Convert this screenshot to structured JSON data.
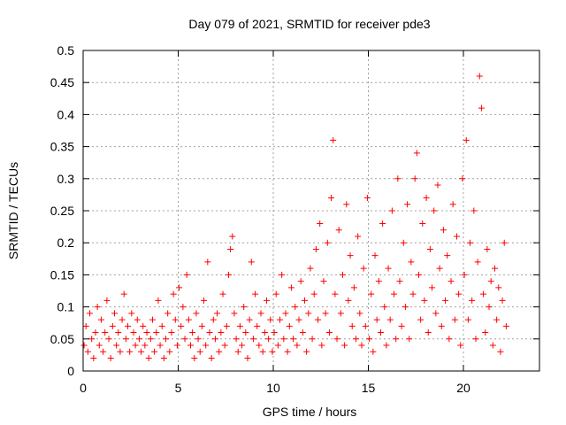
{
  "chart_data": {
    "type": "scatter",
    "title": "Day 079 of 2021, SRMTID for receiver pde3",
    "xlabel": "GPS time / hours",
    "ylabel": "SRMTID / TECUs",
    "xlim": [
      0,
      24
    ],
    "ylim": [
      0,
      0.5
    ],
    "xticks": [
      0,
      5,
      10,
      15,
      20
    ],
    "xtick_labels": [
      "0",
      "5",
      "10",
      "15",
      "20"
    ],
    "yticks": [
      0,
      0.05,
      0.1,
      0.15,
      0.2,
      0.25,
      0.3,
      0.35,
      0.4,
      0.45,
      0.5
    ],
    "ytick_labels": [
      "0",
      "0.05",
      "0.1",
      "0.15",
      "0.2",
      "0.25",
      "0.3",
      "0.35",
      "0.4",
      "0.45",
      "0.5"
    ],
    "grid": true,
    "marker": "+",
    "colors": {
      "points": "#ff0000",
      "grid": "#a0a0a0",
      "axis": "#000000"
    },
    "series": [
      {
        "name": "SRMTID",
        "points": [
          [
            0.05,
            0.04
          ],
          [
            0.15,
            0.07
          ],
          [
            0.25,
            0.03
          ],
          [
            0.35,
            0.09
          ],
          [
            0.45,
            0.05
          ],
          [
            0.55,
            0.02
          ],
          [
            0.65,
            0.06
          ],
          [
            0.75,
            0.1
          ],
          [
            0.85,
            0.04
          ],
          [
            0.95,
            0.08
          ],
          [
            1.05,
            0.03
          ],
          [
            1.15,
            0.06
          ],
          [
            1.25,
            0.11
          ],
          [
            1.35,
            0.05
          ],
          [
            1.45,
            0.02
          ],
          [
            1.55,
            0.07
          ],
          [
            1.65,
            0.09
          ],
          [
            1.75,
            0.04
          ],
          [
            1.85,
            0.06
          ],
          [
            1.95,
            0.03
          ],
          [
            2.05,
            0.08
          ],
          [
            2.15,
            0.12
          ],
          [
            2.25,
            0.05
          ],
          [
            2.35,
            0.07
          ],
          [
            2.45,
            0.03
          ],
          [
            2.55,
            0.09
          ],
          [
            2.65,
            0.06
          ],
          [
            2.75,
            0.04
          ],
          [
            2.85,
            0.08
          ],
          [
            2.95,
            0.05
          ],
          [
            3.05,
            0.03
          ],
          [
            3.15,
            0.07
          ],
          [
            3.25,
            0.04
          ],
          [
            3.35,
            0.06
          ],
          [
            3.45,
            0.02
          ],
          [
            3.55,
            0.05
          ],
          [
            3.65,
            0.08
          ],
          [
            3.75,
            0.03
          ],
          [
            3.85,
            0.06
          ],
          [
            3.95,
            0.11
          ],
          [
            4.05,
            0.04
          ],
          [
            4.15,
            0.07
          ],
          [
            4.25,
            0.02
          ],
          [
            4.35,
            0.05
          ],
          [
            4.45,
            0.09
          ],
          [
            4.55,
            0.03
          ],
          [
            4.65,
            0.06
          ],
          [
            4.75,
            0.12
          ],
          [
            4.85,
            0.08
          ],
          [
            4.95,
            0.04
          ],
          [
            5.05,
            0.13
          ],
          [
            5.15,
            0.07
          ],
          [
            5.25,
            0.1
          ],
          [
            5.35,
            0.05
          ],
          [
            5.45,
            0.15
          ],
          [
            5.55,
            0.08
          ],
          [
            5.65,
            0.04
          ],
          [
            5.75,
            0.06
          ],
          [
            5.85,
            0.02
          ],
          [
            5.95,
            0.09
          ],
          [
            6.05,
            0.05
          ],
          [
            6.15,
            0.03
          ],
          [
            6.25,
            0.07
          ],
          [
            6.35,
            0.11
          ],
          [
            6.45,
            0.04
          ],
          [
            6.55,
            0.17
          ],
          [
            6.65,
            0.06
          ],
          [
            6.75,
            0.02
          ],
          [
            6.85,
            0.08
          ],
          [
            6.95,
            0.05
          ],
          [
            7.05,
            0.09
          ],
          [
            7.15,
            0.03
          ],
          [
            7.25,
            0.06
          ],
          [
            7.35,
            0.12
          ],
          [
            7.45,
            0.04
          ],
          [
            7.55,
            0.07
          ],
          [
            7.65,
            0.15
          ],
          [
            7.75,
            0.19
          ],
          [
            7.85,
            0.21
          ],
          [
            7.95,
            0.09
          ],
          [
            8.05,
            0.05
          ],
          [
            8.15,
            0.03
          ],
          [
            8.25,
            0.07
          ],
          [
            8.35,
            0.04
          ],
          [
            8.45,
            0.1
          ],
          [
            8.55,
            0.06
          ],
          [
            8.65,
            0.02
          ],
          [
            8.75,
            0.08
          ],
          [
            8.85,
            0.17
          ],
          [
            8.95,
            0.05
          ],
          [
            9.05,
            0.12
          ],
          [
            9.15,
            0.07
          ],
          [
            9.25,
            0.04
          ],
          [
            9.35,
            0.09
          ],
          [
            9.45,
            0.03
          ],
          [
            9.55,
            0.06
          ],
          [
            9.65,
            0.11
          ],
          [
            9.75,
            0.05
          ],
          [
            9.85,
            0.08
          ],
          [
            9.95,
            0.03
          ],
          [
            10.05,
            0.06
          ],
          [
            10.15,
            0.12
          ],
          [
            10.25,
            0.04
          ],
          [
            10.35,
            0.08
          ],
          [
            10.45,
            0.15
          ],
          [
            10.55,
            0.05
          ],
          [
            10.65,
            0.09
          ],
          [
            10.75,
            0.03
          ],
          [
            10.85,
            0.07
          ],
          [
            10.95,
            0.13
          ],
          [
            11.05,
            0.05
          ],
          [
            11.15,
            0.1
          ],
          [
            11.25,
            0.04
          ],
          [
            11.35,
            0.08
          ],
          [
            11.45,
            0.14
          ],
          [
            11.55,
            0.06
          ],
          [
            11.65,
            0.11
          ],
          [
            11.75,
            0.03
          ],
          [
            11.85,
            0.09
          ],
          [
            11.95,
            0.16
          ],
          [
            12.05,
            0.05
          ],
          [
            12.15,
            0.12
          ],
          [
            12.25,
            0.19
          ],
          [
            12.35,
            0.08
          ],
          [
            12.45,
            0.23
          ],
          [
            12.55,
            0.04
          ],
          [
            12.65,
            0.14
          ],
          [
            12.75,
            0.09
          ],
          [
            12.85,
            0.2
          ],
          [
            12.95,
            0.06
          ],
          [
            13.05,
            0.27
          ],
          [
            13.15,
            0.36
          ],
          [
            13.25,
            0.12
          ],
          [
            13.35,
            0.05
          ],
          [
            13.45,
            0.22
          ],
          [
            13.55,
            0.09
          ],
          [
            13.65,
            0.15
          ],
          [
            13.75,
            0.04
          ],
          [
            13.85,
            0.26
          ],
          [
            13.95,
            0.11
          ],
          [
            14.05,
            0.18
          ],
          [
            14.15,
            0.07
          ],
          [
            14.25,
            0.13
          ],
          [
            14.35,
            0.05
          ],
          [
            14.45,
            0.21
          ],
          [
            14.55,
            0.09
          ],
          [
            14.65,
            0.04
          ],
          [
            14.75,
            0.16
          ],
          [
            14.85,
            0.07
          ],
          [
            14.95,
            0.27
          ],
          [
            15.05,
            0.05
          ],
          [
            15.15,
            0.12
          ],
          [
            15.25,
            0.03
          ],
          [
            15.35,
            0.18
          ],
          [
            15.45,
            0.08
          ],
          [
            15.55,
            0.14
          ],
          [
            15.65,
            0.06
          ],
          [
            15.75,
            0.23
          ],
          [
            15.85,
            0.1
          ],
          [
            15.95,
            0.04
          ],
          [
            16.05,
            0.16
          ],
          [
            16.15,
            0.08
          ],
          [
            16.25,
            0.25
          ],
          [
            16.35,
            0.12
          ],
          [
            16.45,
            0.05
          ],
          [
            16.55,
            0.3
          ],
          [
            16.65,
            0.14
          ],
          [
            16.75,
            0.07
          ],
          [
            16.85,
            0.2
          ],
          [
            16.95,
            0.1
          ],
          [
            17.05,
            0.26
          ],
          [
            17.15,
            0.05
          ],
          [
            17.25,
            0.17
          ],
          [
            17.35,
            0.12
          ],
          [
            17.45,
            0.3
          ],
          [
            17.55,
            0.34
          ],
          [
            17.65,
            0.15
          ],
          [
            17.75,
            0.08
          ],
          [
            17.85,
            0.23
          ],
          [
            17.95,
            0.11
          ],
          [
            18.05,
            0.27
          ],
          [
            18.15,
            0.06
          ],
          [
            18.25,
            0.19
          ],
          [
            18.35,
            0.13
          ],
          [
            18.45,
            0.25
          ],
          [
            18.55,
            0.09
          ],
          [
            18.65,
            0.29
          ],
          [
            18.75,
            0.16
          ],
          [
            18.85,
            0.07
          ],
          [
            18.95,
            0.22
          ],
          [
            19.05,
            0.11
          ],
          [
            19.15,
            0.18
          ],
          [
            19.25,
            0.05
          ],
          [
            19.35,
            0.14
          ],
          [
            19.45,
            0.26
          ],
          [
            19.55,
            0.08
          ],
          [
            19.65,
            0.21
          ],
          [
            19.75,
            0.12
          ],
          [
            19.85,
            0.04
          ],
          [
            19.95,
            0.3
          ],
          [
            20.05,
            0.15
          ],
          [
            20.15,
            0.36
          ],
          [
            20.25,
            0.08
          ],
          [
            20.35,
            0.2
          ],
          [
            20.45,
            0.11
          ],
          [
            20.55,
            0.25
          ],
          [
            20.65,
            0.05
          ],
          [
            20.75,
            0.17
          ],
          [
            20.85,
            0.46
          ],
          [
            20.95,
            0.41
          ],
          [
            21.05,
            0.12
          ],
          [
            21.15,
            0.06
          ],
          [
            21.25,
            0.19
          ],
          [
            21.35,
            0.1
          ],
          [
            21.45,
            0.14
          ],
          [
            21.55,
            0.04
          ],
          [
            21.65,
            0.16
          ],
          [
            21.75,
            0.08
          ],
          [
            21.85,
            0.13
          ],
          [
            21.95,
            0.03
          ],
          [
            22.05,
            0.11
          ],
          [
            22.15,
            0.2
          ],
          [
            22.25,
            0.07
          ]
        ]
      }
    ]
  }
}
